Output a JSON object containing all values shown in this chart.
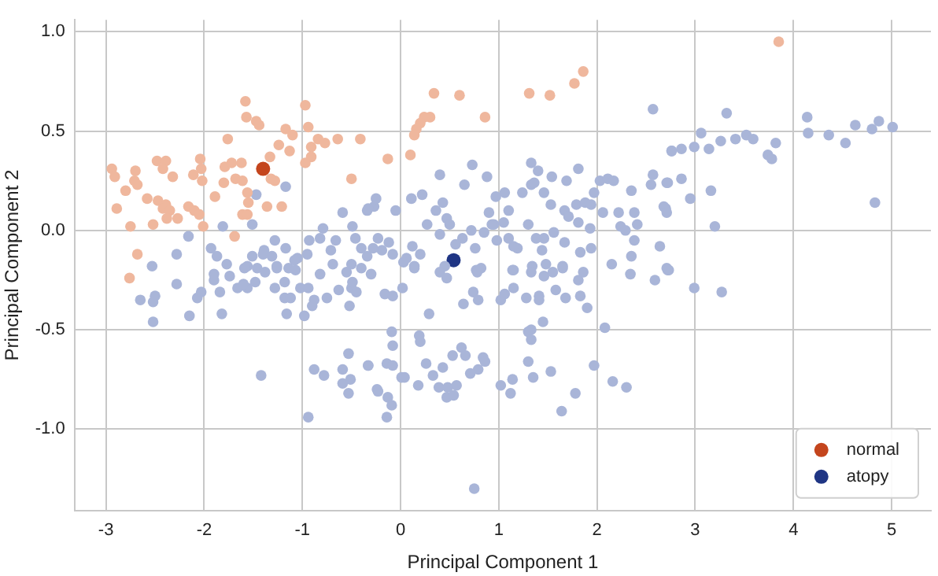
{
  "chart_data": {
    "type": "scatter",
    "xlabel": "Principal Component 1",
    "ylabel": "Principal Component 2",
    "xlim": [
      -3.32,
      5.4
    ],
    "ylim": [
      -1.41,
      1.06
    ],
    "xticks": [
      -3,
      -2,
      -1,
      0,
      1,
      2,
      3,
      4,
      5
    ],
    "yticks": [
      {
        "value": -1,
        "label": "-1.0"
      },
      {
        "value": -0.5,
        "label": "-0.5"
      },
      {
        "value": 0,
        "label": "0.0"
      },
      {
        "value": 0.5,
        "label": "0.5"
      },
      {
        "value": 1,
        "label": "1.0"
      }
    ],
    "grid": true,
    "legend": "bottom right",
    "marker": "circle",
    "series": [
      {
        "color": "#efb79d",
        "x": [
          -1.58,
          -1.57,
          -1.47,
          -1.44,
          -0.97,
          -1.17,
          -1.1,
          -0.94,
          -1.76,
          -1.24,
          -1.33,
          -1.13,
          -0.91,
          -0.84,
          -0.77,
          -0.64,
          -0.41,
          -0.91,
          -0.97,
          -2.94,
          -2.91,
          -2.7,
          -2.71,
          -2.68,
          -2.8,
          -2.48,
          -2.39,
          -2.42,
          -2.32,
          -2.58,
          -2.47,
          -2.39,
          -2.42,
          -2.35,
          -2.27,
          -2.38,
          -2.89,
          -2.75,
          -2.52,
          -2.16,
          -2.1,
          -2.05,
          -2.04,
          -2.03,
          -2.11,
          -2.02,
          -1.89,
          -1.79,
          -1.8,
          -1.72,
          -1.62,
          -1.68,
          -1.61,
          -1.32,
          -1.28,
          -1.56,
          -1.55,
          -1.61,
          -1.56,
          -1.36,
          -1.21,
          -2.01,
          -1.69,
          -0.5,
          -2.76,
          -2.68,
          0.34,
          0.6,
          0.86,
          0.3,
          0.24,
          0.2,
          0.16,
          0.14,
          0.1,
          -0.13,
          1.31,
          1.52,
          1.77,
          1.86,
          3.85
        ],
        "values": [
          0.65,
          0.57,
          0.55,
          0.53,
          0.63,
          0.51,
          0.48,
          0.52,
          0.46,
          0.43,
          0.37,
          0.4,
          0.42,
          0.46,
          0.44,
          0.46,
          0.46,
          0.37,
          0.34,
          0.31,
          0.27,
          0.3,
          0.25,
          0.23,
          0.2,
          0.35,
          0.35,
          0.31,
          0.27,
          0.16,
          0.15,
          0.13,
          0.11,
          0.1,
          0.06,
          0.06,
          0.11,
          0.02,
          0.03,
          0.12,
          0.1,
          0.08,
          0.36,
          0.31,
          0.28,
          0.25,
          0.17,
          0.32,
          0.24,
          0.34,
          0.34,
          0.26,
          0.25,
          0.26,
          0.25,
          0.19,
          0.14,
          0.08,
          0.08,
          0.12,
          0.12,
          0.02,
          -0.03,
          0.26,
          -0.24,
          -0.12,
          0.69,
          0.68,
          0.57,
          0.57,
          0.57,
          0.54,
          0.51,
          0.48,
          0.38,
          0.36,
          0.69,
          0.68,
          0.74,
          0.8,
          0.95
        ]
      },
      {
        "color": "#a9b5d8",
        "x": [
          3.32,
          4.14,
          4.15,
          4.36,
          4.53,
          4.63,
          4.8,
          4.87,
          5.01,
          3.06,
          2.99,
          2.76,
          2.86,
          3.14,
          3.26,
          3.41,
          3.52,
          3.59,
          3.82,
          3.74,
          3.78,
          2.71,
          2.86,
          2.95,
          3.16,
          2.7,
          3.2,
          4.83,
          2.71,
          2.99,
          3.27,
          2.57,
          2.76,
          2.57,
          2.72,
          2.55,
          1.33,
          1.4,
          1.54,
          1.81,
          1.69,
          1.33,
          1.36,
          1.24,
          1.46,
          0.73,
          0.88,
          0.65,
          0.4,
          0.22,
          0.11,
          -0.05,
          -0.27,
          -0.34,
          0.97,
          1.06,
          1.1,
          0.36,
          0.43,
          0.47,
          0.5,
          0.27,
          0.4,
          0.9,
          0.95,
          1.05,
          1.53,
          1.67,
          1.79,
          1.88,
          1.94,
          1.71,
          1.81,
          1.97,
          2.03,
          2.11,
          2.17,
          2.35,
          2.06,
          2.22,
          2.38,
          2.68,
          2.24,
          2.41,
          2.71,
          1.3,
          1.38,
          1.46,
          1.56,
          1.93,
          1.94,
          1.83,
          1.67,
          0.85,
          0.72,
          0.63,
          0.56,
          0.76,
          1.19,
          1.15,
          0.98,
          1.1,
          0.93,
          2.15,
          2.35,
          2.38,
          2.64,
          2.73,
          2.29,
          0.12,
          0.2,
          -0.23,
          -0.12,
          -0.19,
          -0.28,
          -0.08,
          0.06,
          0.14,
          0.45,
          0.77,
          1.14,
          1.34,
          1.48,
          1.65,
          1.44,
          -1.17,
          -1.47,
          -1.51,
          -1.81,
          -2.16,
          -2.28,
          -2.53,
          -0.25,
          -0.33,
          -0.59,
          -0.49,
          -0.79,
          -0.82,
          -0.66,
          -0.46,
          -0.4,
          -0.34,
          -0.5,
          -0.71,
          -0.95,
          -1.05,
          -1.17,
          -1.28,
          -1.39,
          -1.51,
          -1.26,
          -1.14,
          -1.08,
          -0.93,
          -1.93,
          -1.87,
          -1.77,
          -1.56,
          -1.4,
          -1.31,
          -2.28,
          -2.65,
          -2.5,
          -2.52,
          -2.52,
          -2.15,
          -2.07,
          -2.03,
          -1.9,
          -1.9,
          -1.84,
          -1.82,
          -1.74,
          -1.66,
          -1.56,
          -1.6,
          -1.48,
          -1.59,
          -1.46,
          -1.38,
          -1.26,
          -1.28,
          -1.18,
          -1.18,
          -1.12,
          -1.16,
          -1.07,
          -1.02,
          -0.94,
          -0.88,
          -0.9,
          -0.98,
          -0.82,
          -0.75,
          -0.69,
          -0.63,
          -0.55,
          -0.5,
          -0.45,
          -0.49,
          -0.52,
          -0.4,
          -0.3,
          -1.42,
          -0.88,
          -0.78,
          -0.59,
          -0.53,
          -0.51,
          -0.59,
          -0.53,
          -0.33,
          -0.24,
          -0.94,
          0.03,
          0.14,
          0.4,
          0.47,
          0.78,
          0.82,
          1.15,
          1.33,
          1.46,
          1.55,
          1.65,
          1.81,
          1.86,
          2.34,
          2.59,
          2.72,
          0.02,
          -0.16,
          -0.08,
          0.29,
          0.64,
          0.74,
          0.79,
          1.02,
          1.06,
          1.15,
          1.28,
          1.41,
          1.41,
          1.58,
          1.68,
          1.83,
          1.9,
          1.45,
          1.3,
          1.33,
          1.33,
          2.08,
          -0.09,
          0.19,
          0.2,
          -0.08,
          -0.33,
          -0.14,
          -0.08,
          0.01,
          0.04,
          -0.23,
          -0.13,
          -0.09,
          -0.14,
          0.26,
          0.33,
          0.43,
          0.53,
          0.62,
          0.66,
          0.84,
          0.86,
          0.79,
          0.71,
          0.18,
          0.39,
          0.48,
          0.57,
          0.47,
          0.54,
          1.02,
          1.14,
          1.12,
          1.3,
          1.35,
          1.53,
          1.64,
          1.78,
          1.97,
          2.16,
          2.3,
          0.75
        ],
        "values": [
          0.59,
          0.57,
          0.49,
          0.48,
          0.44,
          0.53,
          0.51,
          0.55,
          0.52,
          0.49,
          0.42,
          0.4,
          0.41,
          0.41,
          0.45,
          0.46,
          0.48,
          0.46,
          0.44,
          0.38,
          0.36,
          0.24,
          0.26,
          0.16,
          0.2,
          0.11,
          0.02,
          0.14,
          -0.19,
          -0.29,
          -0.31,
          0.61,
          0.4,
          0.28,
          0.24,
          0.23,
          0.34,
          0.3,
          0.27,
          0.31,
          0.25,
          0.23,
          0.24,
          0.19,
          0.19,
          0.33,
          0.27,
          0.23,
          0.28,
          0.18,
          0.16,
          0.1,
          0.12,
          0.1,
          0.17,
          0.19,
          0.1,
          0.1,
          0.14,
          0.06,
          0.03,
          0.03,
          -0.02,
          0.09,
          0.03,
          0.04,
          0.13,
          0.1,
          0.13,
          0.14,
          0.13,
          0.07,
          0.04,
          0.19,
          0.25,
          0.26,
          0.25,
          0.2,
          0.09,
          0.09,
          0.09,
          0.12,
          0.02,
          0.03,
          0.09,
          0.03,
          -0.04,
          -0.04,
          -0.01,
          0.01,
          -0.09,
          -0.11,
          -0.06,
          -0.01,
          0,
          -0.04,
          -0.07,
          -0.09,
          -0.09,
          -0.08,
          -0.05,
          -0.04,
          0.03,
          -0.17,
          -0.13,
          -0.05,
          -0.08,
          -0.2,
          0,
          -0.08,
          -0.12,
          -0.04,
          -0.06,
          -0.1,
          -0.09,
          -0.12,
          -0.14,
          -0.19,
          -0.18,
          -0.2,
          -0.2,
          -0.18,
          -0.17,
          -0.18,
          -0.1,
          0.22,
          0.18,
          0.03,
          0.02,
          -0.03,
          -0.12,
          -0.18,
          0.16,
          0.11,
          0.09,
          0.02,
          0.01,
          -0.04,
          -0.05,
          -0.04,
          -0.09,
          -0.13,
          -0.17,
          -0.1,
          -0.12,
          -0.14,
          -0.09,
          -0.05,
          -0.1,
          -0.13,
          -0.18,
          -0.19,
          -0.15,
          -0.05,
          -0.09,
          -0.13,
          -0.17,
          -0.18,
          -0.12,
          -0.13,
          -0.27,
          -0.35,
          -0.33,
          -0.36,
          -0.46,
          -0.43,
          -0.34,
          -0.31,
          -0.22,
          -0.25,
          -0.31,
          -0.42,
          -0.23,
          -0.29,
          -0.29,
          -0.27,
          -0.26,
          -0.19,
          -0.19,
          -0.21,
          -0.19,
          -0.29,
          -0.26,
          -0.34,
          -0.34,
          -0.42,
          -0.2,
          -0.29,
          -0.29,
          -0.35,
          -0.38,
          -0.43,
          -0.22,
          -0.34,
          -0.17,
          -0.3,
          -0.21,
          -0.29,
          -0.31,
          -0.26,
          -0.38,
          -0.19,
          -0.22,
          -0.73,
          -0.7,
          -0.73,
          -0.7,
          -0.62,
          -0.75,
          -0.77,
          -0.82,
          -0.68,
          -0.8,
          -0.94,
          -0.16,
          -0.18,
          -0.21,
          -0.24,
          -0.21,
          -0.19,
          -0.2,
          -0.21,
          -0.23,
          -0.21,
          -0.19,
          -0.25,
          -0.21,
          -0.22,
          -0.25,
          -0.2,
          -0.29,
          -0.32,
          -0.33,
          -0.42,
          -0.37,
          -0.31,
          -0.35,
          -0.35,
          -0.32,
          -0.29,
          -0.34,
          -0.33,
          -0.35,
          -0.3,
          -0.34,
          -0.33,
          -0.39,
          -0.46,
          -0.51,
          -0.5,
          -0.55,
          -0.49,
          -0.51,
          -0.53,
          -0.56,
          -0.58,
          -0.68,
          -0.67,
          -0.68,
          -0.74,
          -0.74,
          -0.81,
          -0.84,
          -0.88,
          -0.94,
          -0.67,
          -0.73,
          -0.69,
          -0.63,
          -0.59,
          -0.63,
          -0.64,
          -0.66,
          -0.7,
          -0.72,
          -0.78,
          -0.79,
          -0.79,
          -0.78,
          -0.84,
          -0.83,
          -0.78,
          -0.75,
          -0.82,
          -0.66,
          -0.74,
          -0.71,
          -0.91,
          -0.82,
          -0.68,
          -0.76,
          -0.79,
          -1.3
        ]
      },
      {
        "name": "normal",
        "color": "#c4451d",
        "x": [
          -1.4
        ],
        "values": [
          0.31
        ]
      },
      {
        "name": "atopy",
        "color": "#1f3584",
        "x": [
          0.54
        ],
        "values": [
          -0.15
        ]
      }
    ]
  }
}
